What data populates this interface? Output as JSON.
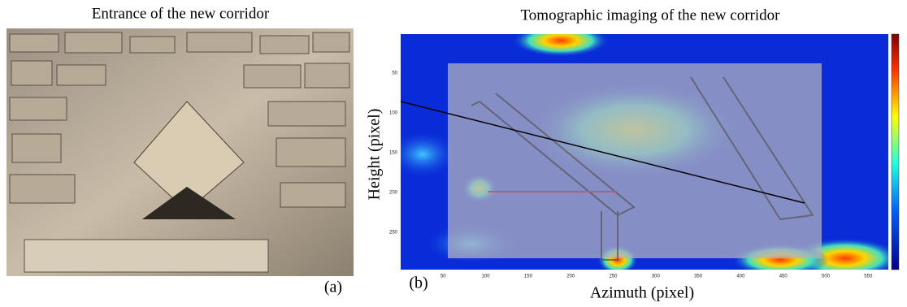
{
  "panels": {
    "a": {
      "title": "Entrance of the new corridor",
      "label": "(a)"
    },
    "b": {
      "title": "Tomographic imaging of the new corridor",
      "label": "(b)",
      "x_axis_label": "Azimuth (pixel)",
      "y_axis_label": "Height (pixel)",
      "xticks": [
        50,
        100,
        150,
        200,
        250,
        300,
        350,
        400,
        450,
        500,
        550
      ],
      "yticks": [
        50,
        100,
        150,
        200,
        250
      ]
    }
  }
}
